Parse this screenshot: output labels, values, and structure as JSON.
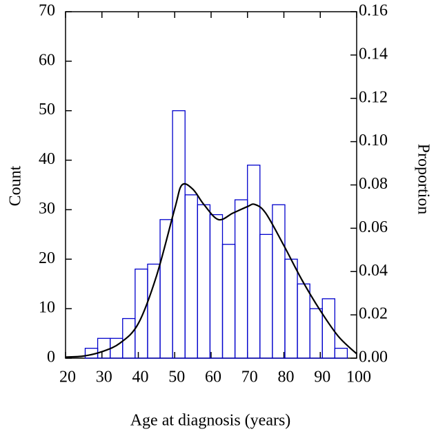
{
  "chart_data": {
    "type": "histogram",
    "xlabel": "Age at diagnosis (years)",
    "ylabel": "Count",
    "y2label": "Proportion",
    "bins": [
      25.4,
      28.83,
      32.26,
      35.69,
      39.12,
      42.55,
      45.98,
      49.41,
      52.84,
      56.27,
      59.7,
      63.13,
      66.56,
      69.99,
      73.42,
      76.85,
      80.28,
      83.71,
      87.14,
      90.57,
      94.0,
      97.43
    ],
    "values": [
      2,
      4,
      4,
      8,
      18,
      19,
      28,
      50,
      33,
      31,
      29,
      23,
      32,
      39,
      25,
      31,
      20,
      15,
      10,
      12,
      2
    ],
    "color": "#0000cc",
    "density": {
      "x": [
        20,
        25,
        30,
        35,
        40,
        45,
        50,
        52,
        55,
        58,
        62,
        66,
        70,
        72,
        75,
        80,
        85,
        90,
        95,
        100
      ],
      "values": [
        0.0005,
        0.001,
        0.003,
        0.007,
        0.016,
        0.038,
        0.069,
        0.08,
        0.078,
        0.071,
        0.064,
        0.067,
        0.07,
        0.071,
        0.067,
        0.052,
        0.036,
        0.022,
        0.01,
        0.002
      ],
      "axis": "y2",
      "color": "#000000"
    },
    "xlim": [
      20,
      100
    ],
    "xticks": [
      20,
      30,
      40,
      50,
      60,
      70,
      80,
      90,
      100
    ],
    "ylim": [
      0,
      70
    ],
    "yticks": [
      0,
      10,
      20,
      30,
      40,
      50,
      60,
      70
    ],
    "y2lim": [
      0,
      0.16
    ],
    "y2ticks": [
      {
        "value": 0,
        "label": "0.00"
      },
      0.02,
      0.04,
      0.06,
      0.08,
      {
        "value": 0.1,
        "label": "0.10"
      },
      0.12,
      0.14,
      0.16
    ]
  }
}
